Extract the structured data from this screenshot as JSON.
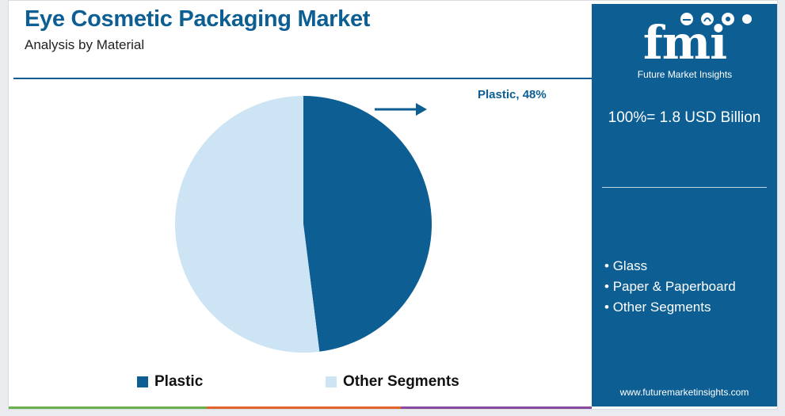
{
  "header": {
    "title": "Eye Cosmetic Packaging Market",
    "subtitle": "Analysis by Material"
  },
  "chart_data": {
    "type": "pie",
    "categories": [
      "Plastic",
      "Other Segments"
    ],
    "values": [
      48,
      52
    ],
    "colors": [
      "#0c5e93",
      "#cde4f4"
    ],
    "callout": "Plastic, 48%",
    "legend": [
      "Plastic",
      "Other Segments"
    ],
    "legend_placement": "bottom"
  },
  "sidebar": {
    "logo_text": "fmi",
    "logo_subtitle": "Future Market Insights",
    "total": "100%= 1.8 USD Billion",
    "other_segments": [
      "Glass",
      "Paper & Paperboard",
      "Other Segments"
    ],
    "website": "www.futuremarketinsights.com"
  },
  "colors": {
    "brand": "#0c5e93",
    "light": "#cde4f4",
    "stripe_green": "#6ab04c",
    "stripe_orange": "#e0642c",
    "stripe_purple": "#8a4a9e"
  }
}
